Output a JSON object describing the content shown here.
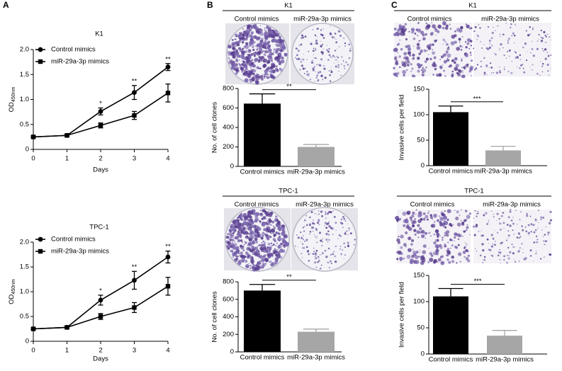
{
  "panel_labels": [
    "A",
    "B",
    "C"
  ],
  "image_headers": [
    {
      "title": "K1",
      "left": "Control mimics",
      "right": "miR-29a-3p mimics"
    },
    {
      "title": "TPC-1",
      "left": "Control mimics",
      "right": "miR-29a-3p mimics"
    },
    {
      "title": "K1",
      "left": "Control mimics",
      "right": "miR-29a-3p mimics"
    },
    {
      "title": "TPC-1",
      "left": "Control mimics",
      "right": "miR-29a-3p mimics"
    }
  ],
  "chart_data": [
    {
      "type": "line",
      "title": "K1",
      "xlabel": "Days",
      "ylabel": {
        "main": "OD",
        "sub": "450nm"
      },
      "x": [
        0,
        1,
        2,
        3,
        4
      ],
      "xlim": [
        0,
        4
      ],
      "xticks": [
        0,
        1,
        2,
        3,
        4
      ],
      "ylim": [
        0,
        2
      ],
      "yticks": [
        0,
        0.5,
        {
          "value": 1,
          "label": "1.0"
        },
        1.5,
        {
          "value": 2,
          "label": "2.0"
        }
      ],
      "series": [
        {
          "name": "Control mimics",
          "color": "#000000",
          "marker": "circle",
          "values": [
            0.25,
            0.28,
            0.76,
            1.14,
            1.65
          ],
          "errors": [
            0.02,
            0.02,
            0.07,
            0.14,
            0.07
          ]
        },
        {
          "name": "miR-29a-3p mimics",
          "color": "#000000",
          "marker": "square",
          "values": [
            0.25,
            0.28,
            0.48,
            0.68,
            1.13
          ],
          "errors": [
            0.02,
            0.02,
            0.05,
            0.08,
            0.18
          ]
        }
      ],
      "annotations": [
        {
          "text": "*",
          "x": 2
        },
        {
          "text": "**",
          "x": 3
        },
        {
          "text": "**",
          "x": 4
        }
      ]
    },
    {
      "type": "line",
      "title": "TPC-1",
      "xlabel": "Days",
      "ylabel": {
        "main": "OD",
        "sub": "450nm"
      },
      "x": [
        0,
        1,
        2,
        3,
        4
      ],
      "xlim": [
        0,
        4
      ],
      "xticks": [
        0,
        1,
        2,
        3,
        4
      ],
      "ylim": [
        0,
        2
      ],
      "yticks": [
        0,
        0.5,
        {
          "value": 1,
          "label": "1.0"
        },
        1.5,
        {
          "value": 2,
          "label": "2.0"
        }
      ],
      "series": [
        {
          "name": "Control mimics",
          "color": "#000000",
          "marker": "circle",
          "values": [
            0.25,
            0.28,
            0.83,
            1.23,
            1.7
          ],
          "errors": [
            0.02,
            0.02,
            0.1,
            0.18,
            0.12
          ]
        },
        {
          "name": "miR-29a-3p mimics",
          "color": "#000000",
          "marker": "square",
          "values": [
            0.25,
            0.28,
            0.5,
            0.68,
            1.11
          ],
          "errors": [
            0.02,
            0.02,
            0.06,
            0.1,
            0.18
          ]
        }
      ],
      "annotations": [
        {
          "text": "*",
          "x": 2
        },
        {
          "text": "**",
          "x": 3
        },
        {
          "text": "**",
          "x": 4
        }
      ]
    },
    {
      "type": "bar",
      "ylabel": "No. of cell clones",
      "categories": [
        "Control mimics",
        "miR-29a-3p mimics"
      ],
      "values": [
        645,
        200
      ],
      "errors": [
        100,
        25
      ],
      "colors": [
        "#000000",
        "#a6a6a6"
      ],
      "ylim": [
        0,
        800
      ],
      "yticks": [
        0,
        200,
        400,
        600,
        800
      ],
      "annotations": [
        {
          "text": "**"
        }
      ]
    },
    {
      "type": "bar",
      "ylabel": "No. of cell clones",
      "categories": [
        "Control mimics",
        "miR-29a-3p mimics"
      ],
      "values": [
        700,
        230
      ],
      "errors": [
        70,
        30
      ],
      "colors": [
        "#000000",
        "#a6a6a6"
      ],
      "ylim": [
        0,
        800
      ],
      "yticks": [
        0,
        200,
        400,
        600,
        800
      ],
      "annotations": [
        {
          "text": "**"
        }
      ]
    },
    {
      "type": "bar",
      "ylabel": "Invasive cells per field",
      "categories": [
        "Control mimics",
        "miR-29a-3p mimics"
      ],
      "values": [
        105,
        30
      ],
      "errors": [
        12,
        8
      ],
      "colors": [
        "#000000",
        "#a6a6a6"
      ],
      "ylim": [
        0,
        150
      ],
      "yticks": [
        0,
        50,
        100,
        150
      ],
      "annotations": [
        {
          "text": "***"
        }
      ]
    },
    {
      "type": "bar",
      "ylabel": "Invasive cells per field",
      "categories": [
        "Control mimics",
        "miR-29a-3p mimics"
      ],
      "values": [
        110,
        35
      ],
      "errors": [
        15,
        10
      ],
      "colors": [
        "#000000",
        "#a6a6a6"
      ],
      "ylim": [
        0,
        150
      ],
      "yticks": [
        0,
        50,
        100,
        150
      ],
      "annotations": [
        {
          "text": "***"
        }
      ]
    }
  ]
}
